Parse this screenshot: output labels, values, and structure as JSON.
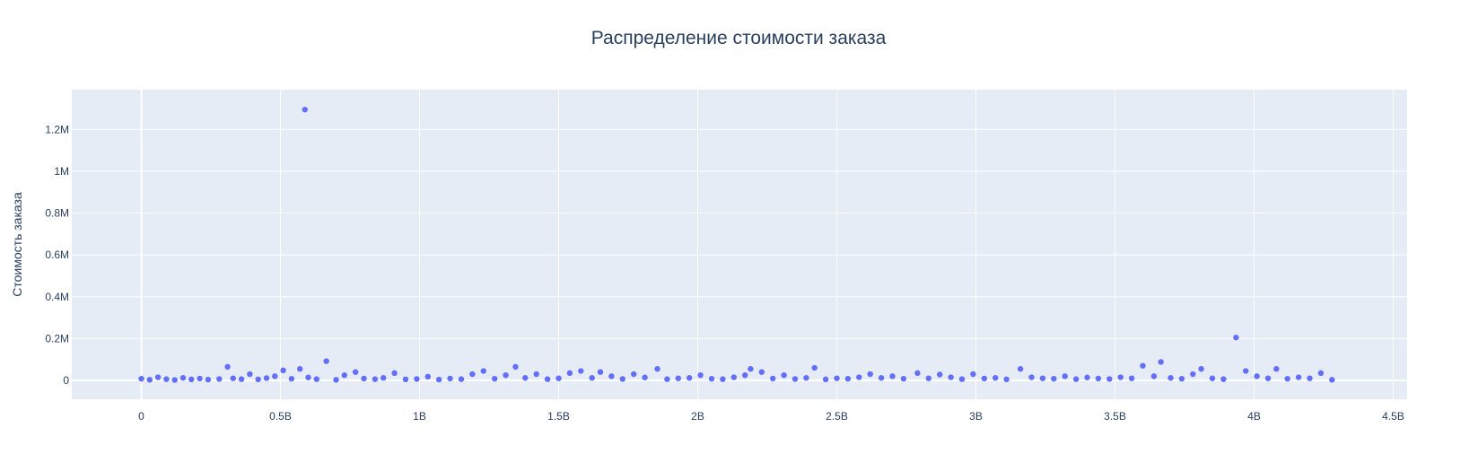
{
  "chart_data": {
    "type": "scatter",
    "title": "Распределение стоимости заказа",
    "xlabel": "",
    "ylabel": "Стоимость заказа",
    "xlim": [
      -250000000,
      4550000000
    ],
    "ylim": [
      -90000,
      1390000
    ],
    "grid": true,
    "legend": "none",
    "x_ticks": [
      {
        "value": 0,
        "label": "0"
      },
      {
        "value": 500000000,
        "label": "0.5B"
      },
      {
        "value": 1000000000,
        "label": "1B"
      },
      {
        "value": 1500000000,
        "label": "1.5B"
      },
      {
        "value": 2000000000,
        "label": "2B"
      },
      {
        "value": 2500000000,
        "label": "2.5B"
      },
      {
        "value": 3000000000,
        "label": "3B"
      },
      {
        "value": 3500000000,
        "label": "3.5B"
      },
      {
        "value": 4000000000,
        "label": "4B"
      },
      {
        "value": 4500000000,
        "label": "4.5B"
      }
    ],
    "y_ticks": [
      {
        "value": 0,
        "label": "0"
      },
      {
        "value": 200000,
        "label": "0.2M"
      },
      {
        "value": 400000,
        "label": "0.4M"
      },
      {
        "value": 600000,
        "label": "0.6M"
      },
      {
        "value": 800000,
        "label": "0.8M"
      },
      {
        "value": 1000000,
        "label": "1M"
      },
      {
        "value": 1200000,
        "label": "1.2M"
      }
    ],
    "series": [
      {
        "color": "#636efa",
        "x": [
          0,
          30000000,
          60000000,
          90000000,
          120000000,
          150000000,
          180000000,
          210000000,
          240000000,
          280000000,
          310000000,
          330000000,
          360000000,
          390000000,
          420000000,
          450000000,
          480000000,
          510000000,
          540000000,
          570000000,
          588000000,
          600000000,
          630000000,
          665000000,
          700000000,
          730000000,
          770000000,
          800000000,
          840000000,
          870000000,
          910000000,
          950000000,
          990000000,
          1030000000,
          1070000000,
          1110000000,
          1150000000,
          1190000000,
          1230000000,
          1270000000,
          1310000000,
          1345000000,
          1380000000,
          1420000000,
          1460000000,
          1500000000,
          1540000000,
          1580000000,
          1620000000,
          1650000000,
          1690000000,
          1730000000,
          1770000000,
          1810000000,
          1855000000,
          1890000000,
          1930000000,
          1970000000,
          2010000000,
          2050000000,
          2090000000,
          2130000000,
          2170000000,
          2190000000,
          2230000000,
          2270000000,
          2310000000,
          2350000000,
          2390000000,
          2420000000,
          2460000000,
          2500000000,
          2540000000,
          2580000000,
          2620000000,
          2660000000,
          2700000000,
          2740000000,
          2790000000,
          2830000000,
          2870000000,
          2910000000,
          2950000000,
          2990000000,
          3030000000,
          3070000000,
          3110000000,
          3160000000,
          3200000000,
          3240000000,
          3280000000,
          3320000000,
          3360000000,
          3400000000,
          3440000000,
          3480000000,
          3520000000,
          3560000000,
          3600000000,
          3640000000,
          3665000000,
          3700000000,
          3740000000,
          3780000000,
          3810000000,
          3850000000,
          3890000000,
          3935000000,
          3970000000,
          4010000000,
          4050000000,
          4080000000,
          4120000000,
          4160000000,
          4200000000,
          4240000000,
          4280000000
        ],
        "y": [
          8000,
          3000,
          15000,
          6000,
          2000,
          12000,
          5000,
          9000,
          4000,
          7000,
          65000,
          10000,
          6000,
          30000,
          5000,
          11000,
          20000,
          48000,
          8000,
          55000,
          1295000,
          14000,
          6000,
          92000,
          3000,
          25000,
          40000,
          9000,
          6000,
          12000,
          35000,
          5000,
          7000,
          18000,
          4000,
          9000,
          6000,
          30000,
          45000,
          8000,
          25000,
          65000,
          12000,
          30000,
          6000,
          10000,
          35000,
          45000,
          12000,
          40000,
          20000,
          7000,
          30000,
          14000,
          55000,
          6000,
          10000,
          12000,
          25000,
          8000,
          6000,
          15000,
          25000,
          55000,
          40000,
          9000,
          25000,
          7000,
          12000,
          60000,
          5000,
          10000,
          8000,
          15000,
          30000,
          12000,
          20000,
          8000,
          35000,
          10000,
          28000,
          15000,
          6000,
          30000,
          9000,
          12000,
          5000,
          55000,
          15000,
          10000,
          8000,
          20000,
          6000,
          14000,
          9000,
          7000,
          15000,
          10000,
          70000,
          20000,
          88000,
          12000,
          8000,
          30000,
          55000,
          10000,
          6000,
          205000,
          45000,
          20000,
          10000,
          55000,
          8000,
          15000,
          10000,
          35000,
          3000
        ]
      }
    ]
  }
}
